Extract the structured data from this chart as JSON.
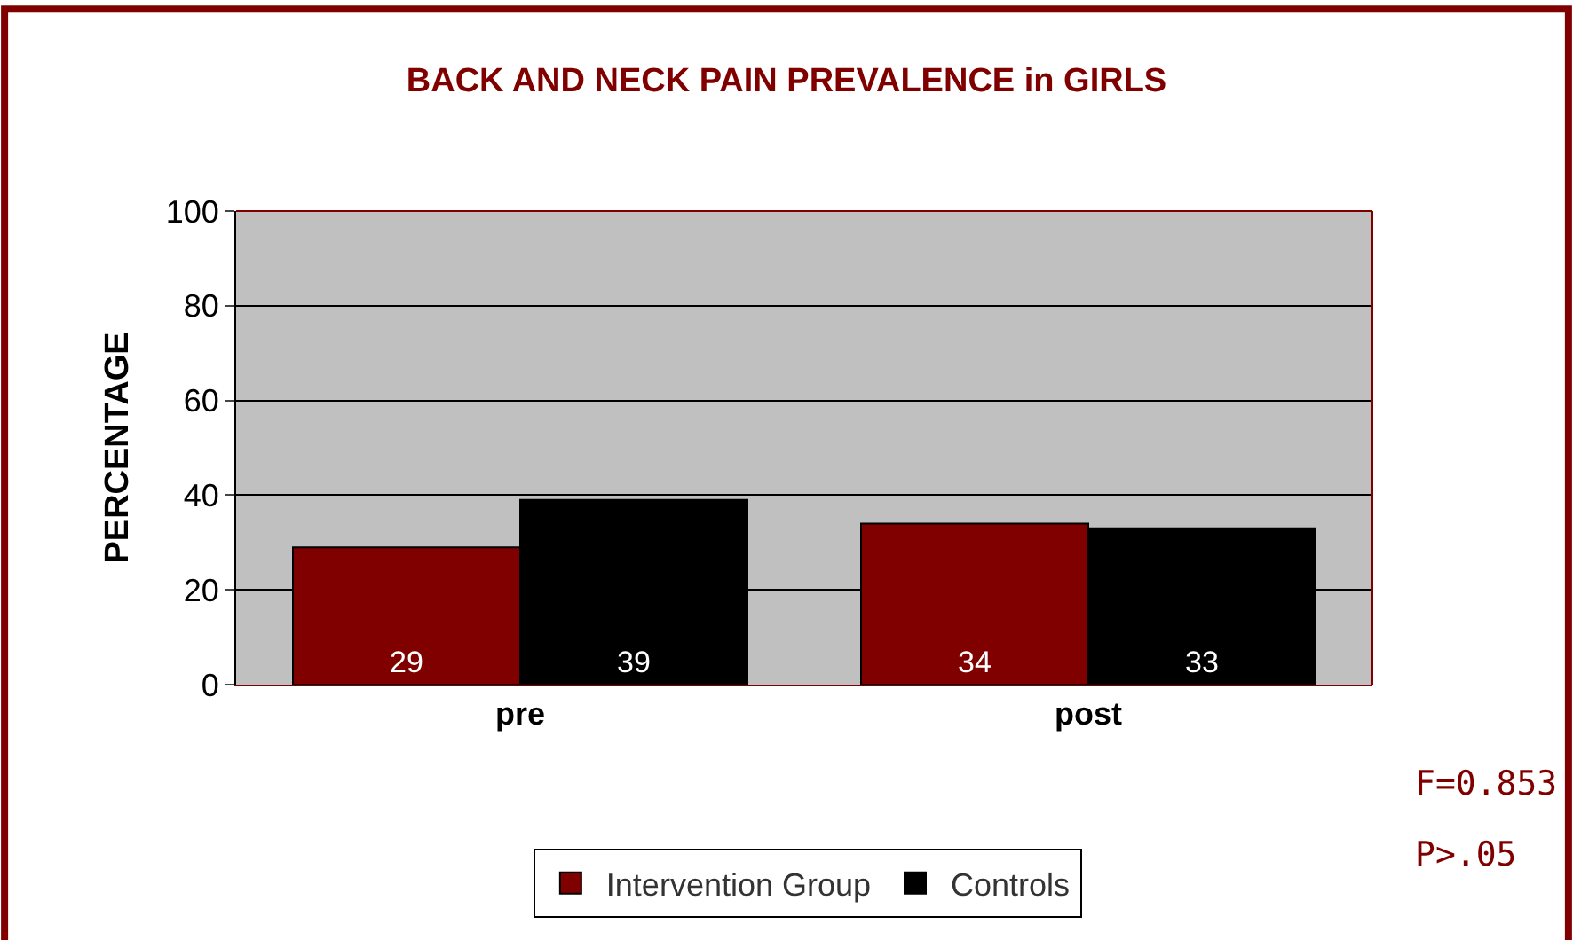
{
  "chart_data": {
    "type": "bar",
    "title": "BACK AND NECK PAIN PREVALENCE in GIRLS",
    "ylabel": "PERCENTAGE",
    "categories": [
      "pre",
      "post"
    ],
    "series": [
      {
        "name": "Intervention Group",
        "color": "#800000",
        "values": [
          29,
          34
        ]
      },
      {
        "name": "Controls",
        "color": "#000000",
        "values": [
          39,
          33
        ]
      }
    ],
    "ylim": [
      0,
      100
    ],
    "yticks": [
      0,
      20,
      40,
      60,
      80,
      100
    ],
    "grid": "y",
    "data_labels": true,
    "legend": "bottom",
    "annotations": [
      "F=0.853",
      "P>.05"
    ]
  }
}
